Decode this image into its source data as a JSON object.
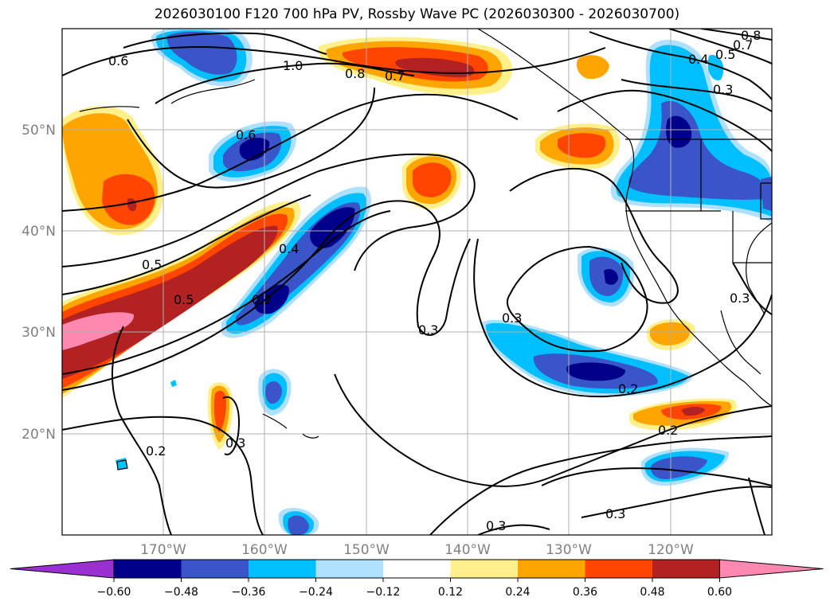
{
  "title": "2026030100 F120 700 hPa PV, Rossby Wave PC (2026030300 - 2026030700)",
  "lat_labels": [
    "50°N",
    "40°N",
    "30°N",
    "20°N"
  ],
  "lon_labels": [
    "170°W",
    "160°W",
    "150°W",
    "140°W",
    "130°W",
    "120°W"
  ],
  "colorbar": {
    "ticks": [
      "−0.60",
      "−0.48",
      "−0.36",
      "−0.24",
      "−0.12",
      "0.12",
      "0.24",
      "0.36",
      "0.48",
      "0.60"
    ],
    "colors": [
      "#9b30d0",
      "#00008b",
      "#3a55c8",
      "#00bfff",
      "#b0e0ff",
      "#ffffff",
      "#fff08c",
      "#ffa500",
      "#ff4500",
      "#b22222",
      "#ff88b0"
    ]
  },
  "contour_labels": [
    "0.6",
    "1.0",
    "0.8",
    "0.7",
    "0.4",
    "0.5",
    "0.3",
    "0.8",
    "0.7",
    "0.6",
    "0.5",
    "0.4",
    "0.5",
    "0.2",
    "0.3",
    "0.3",
    "0.2",
    "0.2",
    "0.3",
    "0.2",
    "0.3",
    "0.3",
    "0.3"
  ]
}
